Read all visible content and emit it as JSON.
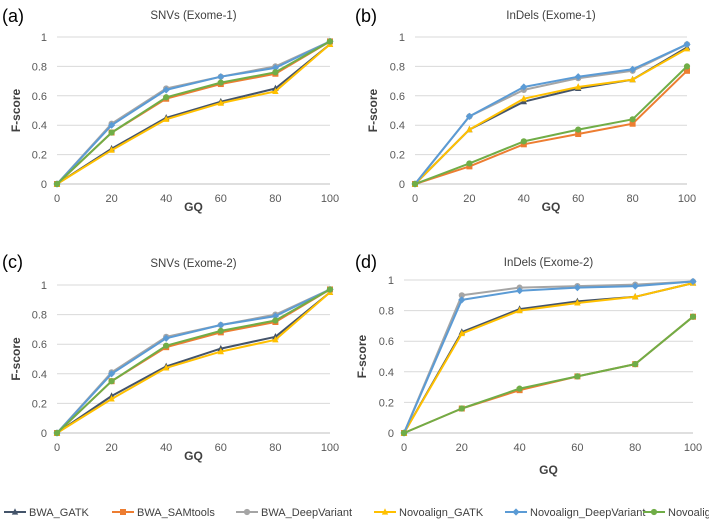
{
  "chart_data": [
    {
      "type": "line",
      "panel_label": "(a)",
      "title": "SNVs (Exome-1)",
      "xlabel": "GQ",
      "ylabel": "F-score",
      "x": [
        0,
        20,
        40,
        60,
        80,
        100
      ],
      "x_ticks": [
        "0",
        "20",
        "40",
        "60",
        "80",
        "100"
      ],
      "y_ticks": [
        "0",
        "0.2",
        "0.4",
        "0.6",
        "0.8",
        "1"
      ],
      "xlim": [
        0,
        100
      ],
      "ylim": [
        0,
        1
      ],
      "grid": true,
      "series": [
        {
          "name": "BWA_GATK",
          "values": [
            0,
            0.24,
            0.45,
            0.56,
            0.65,
            0.95
          ]
        },
        {
          "name": "BWA_SAMtools",
          "values": [
            0,
            0.35,
            0.58,
            0.68,
            0.75,
            0.97
          ]
        },
        {
          "name": "BWA_DeepVariant",
          "values": [
            0,
            0.41,
            0.65,
            0.73,
            0.8,
            0.97
          ]
        },
        {
          "name": "Novoalign_GATK",
          "values": [
            0,
            0.23,
            0.44,
            0.55,
            0.63,
            0.95
          ]
        },
        {
          "name": "Novoalign_DeepVariant",
          "values": [
            0,
            0.4,
            0.64,
            0.73,
            0.79,
            0.97
          ]
        },
        {
          "name": "Novoalign_SAMtools",
          "values": [
            0,
            0.35,
            0.59,
            0.69,
            0.76,
            0.97
          ]
        }
      ]
    },
    {
      "type": "line",
      "panel_label": "(b)",
      "title": "InDels (Exome-1)",
      "xlabel": "GQ",
      "ylabel": "F-score",
      "x": [
        0,
        20,
        40,
        60,
        80,
        100
      ],
      "x_ticks": [
        "0",
        "20",
        "40",
        "60",
        "80",
        "100"
      ],
      "y_ticks": [
        "0",
        "0.2",
        "0.4",
        "0.6",
        "0.8",
        "1"
      ],
      "xlim": [
        0,
        100
      ],
      "ylim": [
        0,
        1
      ],
      "grid": true,
      "series": [
        {
          "name": "BWA_GATK",
          "values": [
            0,
            0.37,
            0.56,
            0.65,
            0.71,
            0.93
          ]
        },
        {
          "name": "BWA_SAMtools",
          "values": [
            0,
            0.12,
            0.27,
            0.34,
            0.41,
            0.77
          ]
        },
        {
          "name": "BWA_DeepVariant",
          "values": [
            0,
            0.46,
            0.64,
            0.72,
            0.77,
            0.95
          ]
        },
        {
          "name": "Novoalign_GATK",
          "values": [
            0,
            0.37,
            0.58,
            0.66,
            0.71,
            0.92
          ]
        },
        {
          "name": "Novoalign_DeepVariant",
          "values": [
            0,
            0.46,
            0.66,
            0.73,
            0.78,
            0.95
          ]
        },
        {
          "name": "Novoalign_SAMtools",
          "values": [
            0,
            0.14,
            0.29,
            0.37,
            0.44,
            0.8
          ]
        }
      ]
    },
    {
      "type": "line",
      "panel_label": "(c)",
      "title": "SNVs (Exome-2)",
      "xlabel": "GQ",
      "ylabel": "F-score",
      "x": [
        0,
        20,
        40,
        60,
        80,
        100
      ],
      "x_ticks": [
        "0",
        "20",
        "40",
        "60",
        "80",
        "100"
      ],
      "y_ticks": [
        "0",
        "0.2",
        "0.4",
        "0.6",
        "0.8",
        "1"
      ],
      "xlim": [
        0,
        100
      ],
      "ylim": [
        0,
        1
      ],
      "grid": true,
      "series": [
        {
          "name": "BWA_GATK",
          "values": [
            0,
            0.25,
            0.45,
            0.57,
            0.65,
            0.95
          ]
        },
        {
          "name": "BWA_SAMtools",
          "values": [
            0,
            0.35,
            0.58,
            0.68,
            0.75,
            0.97
          ]
        },
        {
          "name": "BWA_DeepVariant",
          "values": [
            0,
            0.41,
            0.65,
            0.73,
            0.8,
            0.97
          ]
        },
        {
          "name": "Novoalign_GATK",
          "values": [
            0,
            0.23,
            0.44,
            0.55,
            0.63,
            0.95
          ]
        },
        {
          "name": "Novoalign_DeepVariant",
          "values": [
            0,
            0.4,
            0.64,
            0.73,
            0.79,
            0.97
          ]
        },
        {
          "name": "Novoalign_SAMtools",
          "values": [
            0,
            0.35,
            0.59,
            0.69,
            0.76,
            0.97
          ]
        }
      ]
    },
    {
      "type": "line",
      "panel_label": "(d)",
      "title": "InDels (Exome-2)",
      "xlabel": "GQ",
      "ylabel": "F-score",
      "x": [
        0,
        20,
        40,
        60,
        80,
        100
      ],
      "x_ticks": [
        "0",
        "20",
        "40",
        "60",
        "80",
        "100"
      ],
      "y_ticks": [
        "0",
        "0.2",
        "0.4",
        "0.6",
        "0.8",
        "1"
      ],
      "xlim": [
        0,
        100
      ],
      "ylim": [
        0,
        1
      ],
      "grid": true,
      "series": [
        {
          "name": "BWA_GATK",
          "values": [
            0,
            0.66,
            0.81,
            0.86,
            0.89,
            0.98
          ]
        },
        {
          "name": "BWA_SAMtools",
          "values": [
            0,
            0.16,
            0.28,
            0.37,
            0.45,
            0.76
          ]
        },
        {
          "name": "BWA_DeepVariant",
          "values": [
            0,
            0.9,
            0.95,
            0.96,
            0.97,
            0.99
          ]
        },
        {
          "name": "Novoalign_GATK",
          "values": [
            0,
            0.65,
            0.8,
            0.85,
            0.89,
            0.98
          ]
        },
        {
          "name": "Novoalign_DeepVariant",
          "values": [
            0,
            0.87,
            0.93,
            0.95,
            0.96,
            0.99
          ]
        },
        {
          "name": "Novoalign_SAMtools",
          "values": [
            0,
            0.16,
            0.29,
            0.37,
            0.45,
            0.76
          ]
        }
      ]
    }
  ],
  "legend": {
    "placement": "bottom",
    "entries": [
      {
        "name": "BWA_GATK",
        "color": "#44546A",
        "marker": "triangle"
      },
      {
        "name": "BWA_SAMtools",
        "color": "#ED7D31",
        "marker": "square"
      },
      {
        "name": "BWA_DeepVariant",
        "color": "#A5A5A5",
        "marker": "circle"
      },
      {
        "name": "Novoalign_GATK",
        "color": "#FFC000",
        "marker": "triangle"
      },
      {
        "name": "Novoalign_DeepVariant",
        "color": "#5B9BD5",
        "marker": "diamond"
      },
      {
        "name": "Novoalign_SAMtools",
        "color": "#70AD47",
        "marker": "circle"
      }
    ]
  },
  "colors": {
    "grid": "#D9D9D9",
    "axis": "#BFBFBF"
  }
}
